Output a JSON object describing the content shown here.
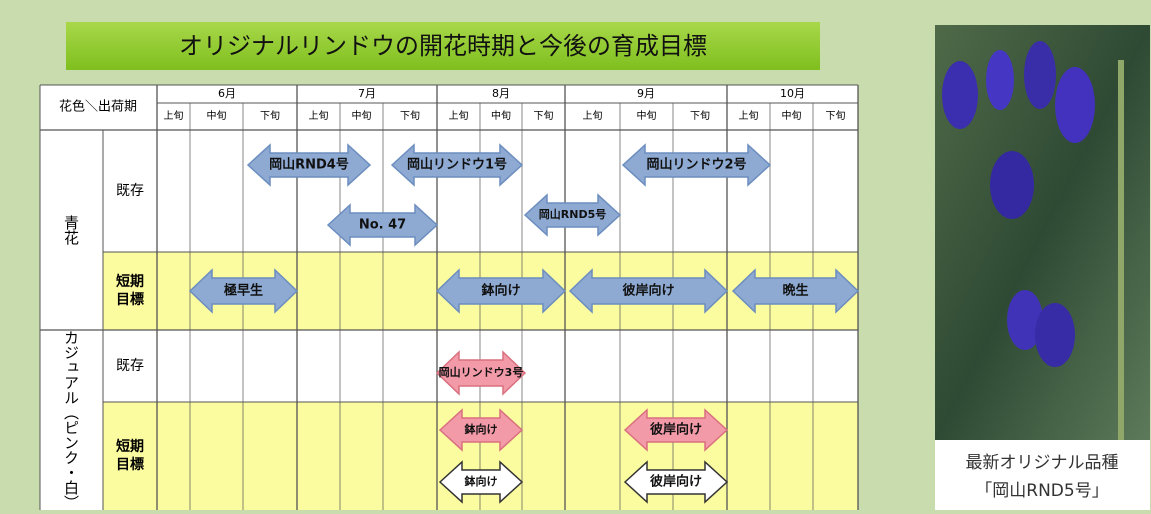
{
  "title": "オリジナルリンドウの開花時期と今後の育成目標",
  "table": {
    "corner": "花色＼出荷期",
    "months": [
      {
        "label": "6月",
        "periods": [
          "上旬",
          "中旬",
          "下旬"
        ]
      },
      {
        "label": "7月",
        "periods": [
          "上旬",
          "中旬",
          "下旬"
        ]
      },
      {
        "label": "8月",
        "periods": [
          "上旬",
          "中旬",
          "下旬"
        ]
      },
      {
        "label": "9月",
        "periods": [
          "上旬",
          "中旬",
          "下旬"
        ]
      },
      {
        "label": "10月",
        "periods": [
          "上旬",
          "中旬",
          "下旬"
        ]
      }
    ],
    "groups": [
      {
        "label": "青花",
        "rows": [
          "既存",
          "短期目標"
        ]
      },
      {
        "label": "カジュアル（ピンク・白）",
        "rows": [
          "既存",
          "短期目標"
        ]
      }
    ]
  },
  "arrows": [
    {
      "label": "岡山RND4号",
      "style": "blue"
    },
    {
      "label": "No. 47",
      "style": "blue"
    },
    {
      "label": "岡山リンドウ1号",
      "style": "blue"
    },
    {
      "label": "岡山RND5号",
      "style": "blue"
    },
    {
      "label": "岡山リンドウ2号",
      "style": "blue"
    },
    {
      "label": "極早生",
      "style": "blue"
    },
    {
      "label": "鉢向け",
      "style": "blue"
    },
    {
      "label": "彼岸向け",
      "style": "blue"
    },
    {
      "label": "晩生",
      "style": "blue"
    },
    {
      "label": "岡山リンドウ3号",
      "style": "pink"
    },
    {
      "label": "鉢向け",
      "style": "pink"
    },
    {
      "label": "彼岸向け",
      "style": "pink"
    },
    {
      "label": "鉢向け",
      "style": "white"
    },
    {
      "label": "彼岸向け",
      "style": "white"
    }
  ],
  "caption": [
    "最新オリジナル品種",
    "「岡山RND5号」"
  ]
}
